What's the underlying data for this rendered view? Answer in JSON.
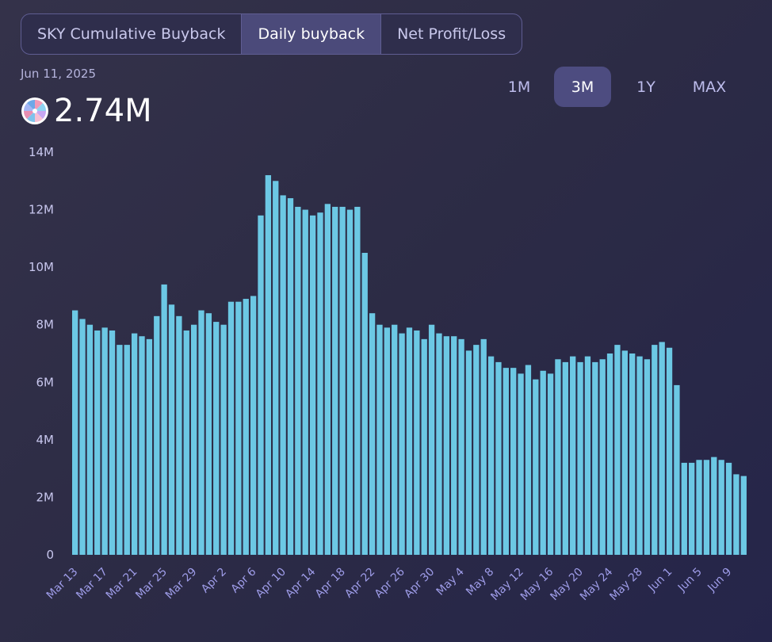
{
  "tabs": [
    {
      "label": "SKY Cumulative Buyback"
    },
    {
      "label": "Daily buyback"
    },
    {
      "label": "Net Profit/Loss"
    }
  ],
  "active_tab": 1,
  "header": {
    "date": "Jun 11, 2025",
    "value": "2.74M",
    "logo_icon": "sky-logo-icon"
  },
  "ranges": [
    {
      "label": "1M"
    },
    {
      "label": "3M"
    },
    {
      "label": "1Y"
    },
    {
      "label": "MAX"
    }
  ],
  "active_range": 1,
  "colors": {
    "bar": "#6cc8e4",
    "accent": "#4d4c80"
  },
  "chart_data": {
    "type": "bar",
    "ylim": [
      0,
      14000000
    ],
    "yticks": [
      {
        "value": 0,
        "label": "0"
      },
      {
        "value": 2000000,
        "label": "2M"
      },
      {
        "value": 4000000,
        "label": "4M"
      },
      {
        "value": 6000000,
        "label": "6M"
      },
      {
        "value": 8000000,
        "label": "8M"
      },
      {
        "value": 10000000,
        "label": "10M"
      },
      {
        "value": 12000000,
        "label": "12M"
      },
      {
        "value": 14000000,
        "label": "14M"
      }
    ],
    "xticks": [
      {
        "index": 0,
        "label": "Mar 13"
      },
      {
        "index": 4,
        "label": "Mar 17"
      },
      {
        "index": 8,
        "label": "Mar 21"
      },
      {
        "index": 12,
        "label": "Mar 25"
      },
      {
        "index": 16,
        "label": "Mar 29"
      },
      {
        "index": 20,
        "label": "Apr 2"
      },
      {
        "index": 24,
        "label": "Apr 6"
      },
      {
        "index": 28,
        "label": "Apr 10"
      },
      {
        "index": 32,
        "label": "Apr 14"
      },
      {
        "index": 36,
        "label": "Apr 18"
      },
      {
        "index": 40,
        "label": "Apr 22"
      },
      {
        "index": 44,
        "label": "Apr 26"
      },
      {
        "index": 48,
        "label": "Apr 30"
      },
      {
        "index": 52,
        "label": "May 4"
      },
      {
        "index": 56,
        "label": "May 8"
      },
      {
        "index": 60,
        "label": "May 12"
      },
      {
        "index": 64,
        "label": "May 16"
      },
      {
        "index": 68,
        "label": "May 20"
      },
      {
        "index": 72,
        "label": "May 24"
      },
      {
        "index": 76,
        "label": "May 28"
      },
      {
        "index": 80,
        "label": "Jun 1"
      },
      {
        "index": 84,
        "label": "Jun 5"
      },
      {
        "index": 88,
        "label": "Jun 9"
      }
    ],
    "values": [
      8500000,
      8200000,
      8000000,
      7800000,
      7900000,
      7800000,
      7300000,
      7300000,
      7700000,
      7600000,
      7500000,
      8300000,
      9400000,
      8700000,
      8300000,
      7800000,
      8000000,
      8500000,
      8400000,
      8100000,
      8000000,
      8800000,
      8800000,
      8900000,
      9000000,
      11800000,
      13200000,
      13000000,
      12500000,
      12400000,
      12100000,
      12000000,
      11800000,
      11900000,
      12200000,
      12100000,
      12100000,
      12000000,
      12100000,
      10500000,
      8400000,
      8000000,
      7900000,
      8000000,
      7700000,
      7900000,
      7800000,
      7500000,
      8000000,
      7700000,
      7600000,
      7600000,
      7500000,
      7100000,
      7300000,
      7500000,
      6900000,
      6700000,
      6500000,
      6500000,
      6300000,
      6600000,
      6100000,
      6400000,
      6300000,
      6800000,
      6700000,
      6900000,
      6700000,
      6900000,
      6700000,
      6800000,
      7000000,
      7300000,
      7100000,
      7000000,
      6900000,
      6800000,
      7300000,
      7400000,
      7200000,
      5900000,
      3200000,
      3200000,
      3300000,
      3300000,
      3400000,
      3300000,
      3200000,
      2800000,
      2740000
    ]
  }
}
